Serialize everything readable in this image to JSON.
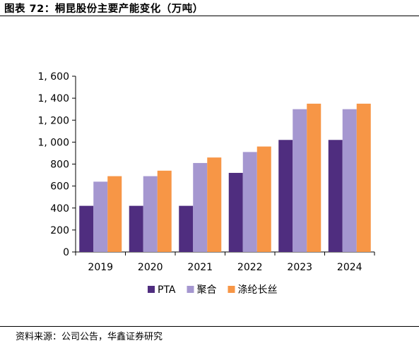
{
  "figure": {
    "title": "图表 72：桐昆股份主要产能变化（万吨）",
    "source": "资料来源：公司公告，华鑫证券研究"
  },
  "chart_data": {
    "type": "bar",
    "title": "",
    "xlabel": "",
    "ylabel": "",
    "categories": [
      "2019",
      "2020",
      "2021",
      "2022",
      "2023",
      "2024"
    ],
    "ylim": [
      0,
      1600
    ],
    "yticks": [
      0,
      200,
      400,
      600,
      800,
      1000,
      1200,
      1400,
      1600
    ],
    "ytick_labels": [
      "0",
      "200",
      "400",
      "600",
      "800",
      "1, 000",
      "1, 200",
      "1, 400",
      "1, 600"
    ],
    "grid": false,
    "legend_position": "bottom",
    "series": [
      {
        "name": "PTA",
        "color": "#4f2d7f",
        "values": [
          420,
          420,
          420,
          720,
          1020,
          1020
        ]
      },
      {
        "name": "聚合",
        "color": "#a597d0",
        "values": [
          640,
          690,
          810,
          910,
          1300,
          1300
        ]
      },
      {
        "name": "涤纶长丝",
        "color": "#f79646",
        "values": [
          690,
          740,
          860,
          960,
          1350,
          1350
        ]
      }
    ]
  }
}
